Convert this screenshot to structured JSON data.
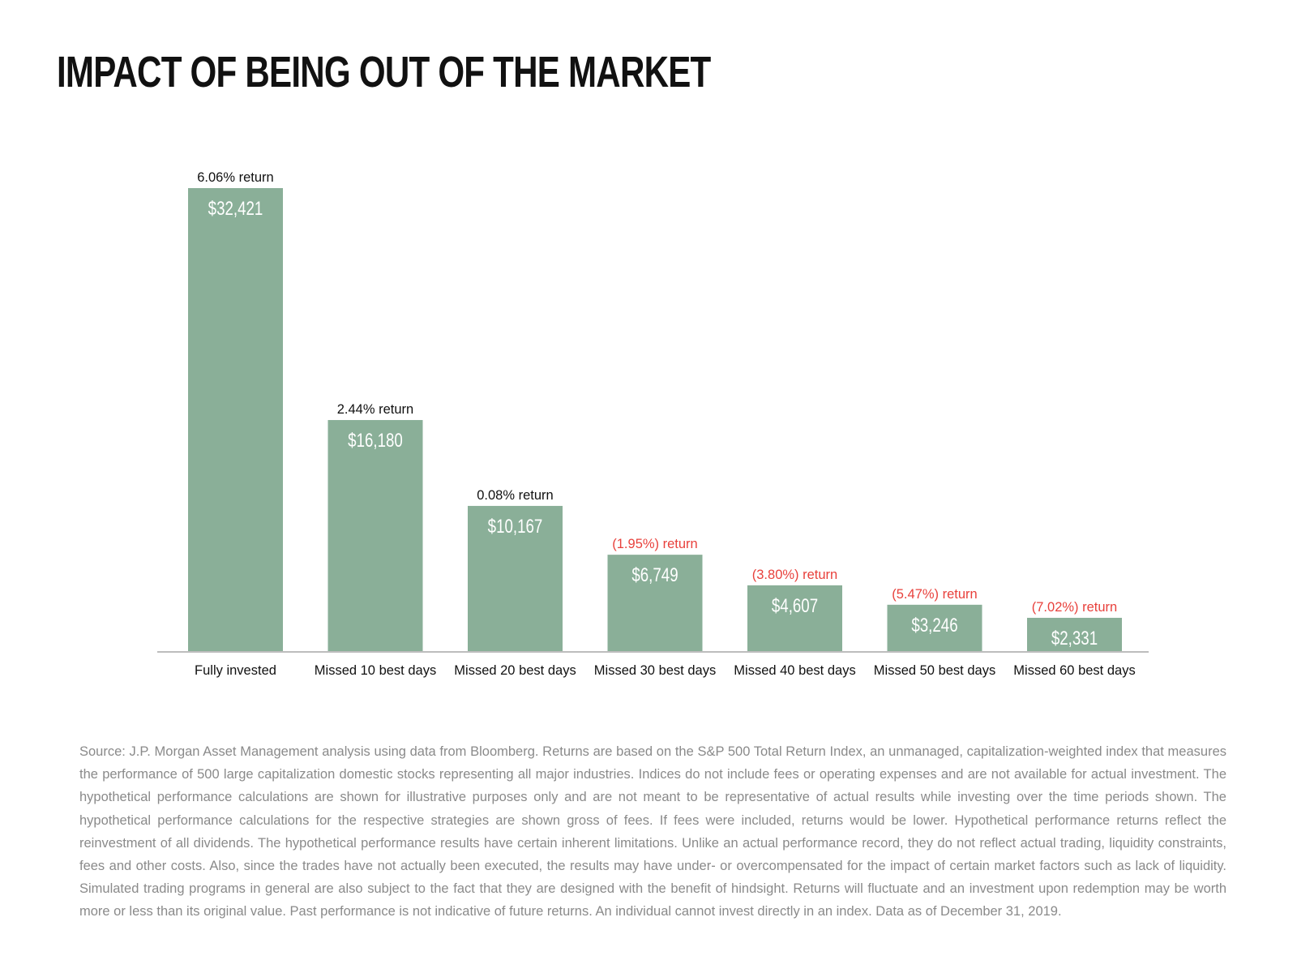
{
  "title": "IMPACT OF BEING OUT OF THE MARKET",
  "colors": {
    "bar": "#8aaf98",
    "bar_value_text": "#ffffff",
    "positive_return_text": "#111111",
    "negative_return_text": "#e8413c",
    "axis": "#bdbdbd"
  },
  "chart_data": {
    "type": "bar",
    "title": "IMPACT OF BEING OUT OF THE MARKET",
    "categories": [
      "Fully invested",
      "Missed 10 best days",
      "Missed 20 best days",
      "Missed 30 best days",
      "Missed 40 best days",
      "Missed 50 best days",
      "Missed 60 best days"
    ],
    "values": [
      32421,
      16180,
      10167,
      6749,
      4607,
      3246,
      2331
    ],
    "value_labels": [
      "$32,421",
      "$16,180",
      "$10,167",
      "$6,749",
      "$4,607",
      "$3,246",
      "$2,331"
    ],
    "return_labels": [
      "6.06% return",
      "2.44% return",
      "0.08% return",
      "(1.95%) return",
      "(3.80%) return",
      "(5.47%) return",
      "(7.02%) return"
    ],
    "returns_negative": [
      false,
      false,
      false,
      true,
      true,
      true,
      true
    ],
    "xlabel": "",
    "ylabel": "",
    "grid": false,
    "legend": "none"
  },
  "footnote": "Source: J.P. Morgan Asset Management analysis using data from Bloomberg. Returns are based on the S&P 500 Total Return Index, an unmanaged, capitalization-weighted index that measures the performance of 500 large capitalization domestic stocks representing all major industries. Indices do not include fees or operating expenses and are not available for actual investment. The hypothetical performance calculations are shown for illustrative purposes only and are not meant to be representative of actual results while investing over the time periods shown. The hypothetical performance calculations for the respective strategies are shown gross of fees. If fees were included, returns would be lower. Hypothetical performance returns reflect the reinvestment of all dividends. The hypothetical performance results have certain inherent limitations. Unlike an actual performance record, they do not reflect actual trading, liquidity constraints, fees and other costs. Also, since the trades have not actually been executed, the results may have under- or overcompensated for the impact of certain market factors such as lack of liquidity. Simulated trading programs in general are also subject to the fact that they are designed with the benefit of hindsight. Returns will fluctuate and an investment upon redemption may be worth more or less than its original value. Past performance is not indicative of future returns. An individual cannot invest directly in an index. Data as of December 31, 2019."
}
